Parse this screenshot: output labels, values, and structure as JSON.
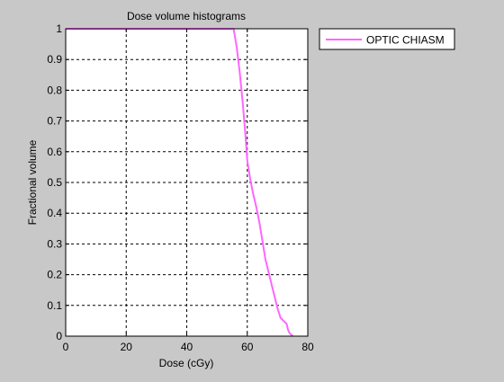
{
  "chart_data": {
    "type": "line",
    "title": "Dose volume histograms",
    "xlabel": "Dose (cGy)",
    "ylabel": "Fractional volume",
    "xlim": [
      0,
      80
    ],
    "ylim": [
      0,
      1
    ],
    "xticks": [
      "0",
      "20",
      "40",
      "60",
      "80"
    ],
    "yticks": [
      "0",
      "0.1",
      "0.2",
      "0.3",
      "0.4",
      "0.5",
      "0.6",
      "0.7",
      "0.8",
      "0.9",
      "1"
    ],
    "grid": true,
    "legend_position": "outside-top-right",
    "series": [
      {
        "name": "OPTIC CHIASM",
        "color": "#ff66ff",
        "x": [
          0,
          55.5,
          56.5,
          57.5,
          58.5,
          59.5,
          60,
          61,
          62,
          63,
          64,
          65,
          66,
          67,
          68,
          69,
          70,
          71,
          72,
          73,
          73.5,
          74,
          74.5,
          75
        ],
        "y": [
          1,
          1,
          0.94,
          0.86,
          0.76,
          0.64,
          0.57,
          0.51,
          0.46,
          0.42,
          0.37,
          0.31,
          0.25,
          0.21,
          0.17,
          0.13,
          0.09,
          0.06,
          0.05,
          0.04,
          0.02,
          0.01,
          0.005,
          0
        ]
      }
    ]
  },
  "colors": {
    "figure_bg": "#c8c8c8",
    "axes_bg": "#ffffff",
    "grid": "#000000"
  }
}
